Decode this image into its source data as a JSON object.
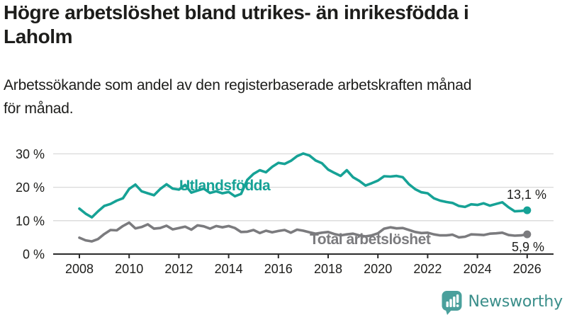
{
  "title_lines": [
    "Högre arbetslöshet bland utrikes- än inrikesfödda i",
    "Laholm"
  ],
  "subtitle_lines": [
    "Arbetssökande som andel av den registerbaserade arbetskraften månad",
    "för månad."
  ],
  "chart_data": {
    "type": "line",
    "title": "Högre arbetslöshet bland utrikes- än inrikesfödda i Laholm",
    "subtitle": "Arbetssökande som andel av den registerbaserade arbetskraften månad för månad.",
    "x_start": 2008,
    "x_step_years": 0.25,
    "x_axis_ticks": [
      2008,
      2010,
      2012,
      2014,
      2016,
      2018,
      2020,
      2022,
      2024,
      2026
    ],
    "y_axis": {
      "ticks": [
        0,
        10,
        20,
        30
      ],
      "tick_suffix": " %",
      "ylim": [
        0,
        32
      ],
      "grid": true
    },
    "series": [
      {
        "name": "Utlandsfödda",
        "color": "#16a296",
        "end_label": "13,1 %",
        "end_value": 13.1,
        "values": [
          13.6,
          12.1,
          11.0,
          12.8,
          14.4,
          15.0,
          16.0,
          16.7,
          19.5,
          20.8,
          18.8,
          18.2,
          17.6,
          19.5,
          20.9,
          19.6,
          19.3,
          20.7,
          18.4,
          19.0,
          19.6,
          18.3,
          18.8,
          18.2,
          18.6,
          17.3,
          18.0,
          22.2,
          24.0,
          25.1,
          24.5,
          26.1,
          27.3,
          27.0,
          27.9,
          29.3,
          30.1,
          29.5,
          28.0,
          27.2,
          25.3,
          24.3,
          23.4,
          25.1,
          23.0,
          21.9,
          20.5,
          21.2,
          22.0,
          23.3,
          23.2,
          23.4,
          23.0,
          20.9,
          19.4,
          18.5,
          18.2,
          16.7,
          16.0,
          15.6,
          15.3,
          14.4,
          14.1,
          14.9,
          14.7,
          15.2,
          14.5,
          15.0,
          15.5,
          14.0,
          12.8,
          12.9,
          13.1
        ]
      },
      {
        "name": "Total arbetslöshet",
        "color": "#7b7b7e",
        "end_label": "5,9 %",
        "end_value": 5.9,
        "values": [
          4.9,
          4.1,
          3.8,
          4.5,
          6.0,
          7.2,
          7.1,
          8.4,
          9.4,
          7.7,
          8.1,
          8.9,
          7.6,
          7.8,
          8.5,
          7.4,
          7.8,
          8.2,
          7.3,
          8.6,
          8.3,
          7.6,
          8.4,
          8.0,
          8.4,
          7.8,
          6.6,
          6.7,
          7.2,
          6.3,
          7.0,
          6.5,
          6.9,
          7.2,
          6.4,
          7.3,
          7.0,
          6.5,
          6.1,
          6.4,
          6.6,
          6.0,
          5.6,
          5.9,
          6.1,
          5.6,
          5.3,
          5.6,
          6.2,
          7.6,
          8.0,
          7.7,
          7.8,
          7.2,
          6.6,
          6.3,
          6.4,
          5.9,
          5.6,
          5.6,
          5.8,
          5.0,
          5.2,
          5.9,
          5.8,
          5.7,
          6.1,
          6.2,
          6.4,
          5.7,
          5.5,
          5.6,
          5.9
        ]
      }
    ]
  },
  "branding": {
    "logo_text": "Newsworthy",
    "logo_color": "#4aa09c",
    "logo_text_color": "#3a8e8a"
  },
  "colors": {
    "background": "#ffffff",
    "text": "#1d1d1b",
    "gridline": "#d9d9d9",
    "axis": "#2b2b2b"
  }
}
